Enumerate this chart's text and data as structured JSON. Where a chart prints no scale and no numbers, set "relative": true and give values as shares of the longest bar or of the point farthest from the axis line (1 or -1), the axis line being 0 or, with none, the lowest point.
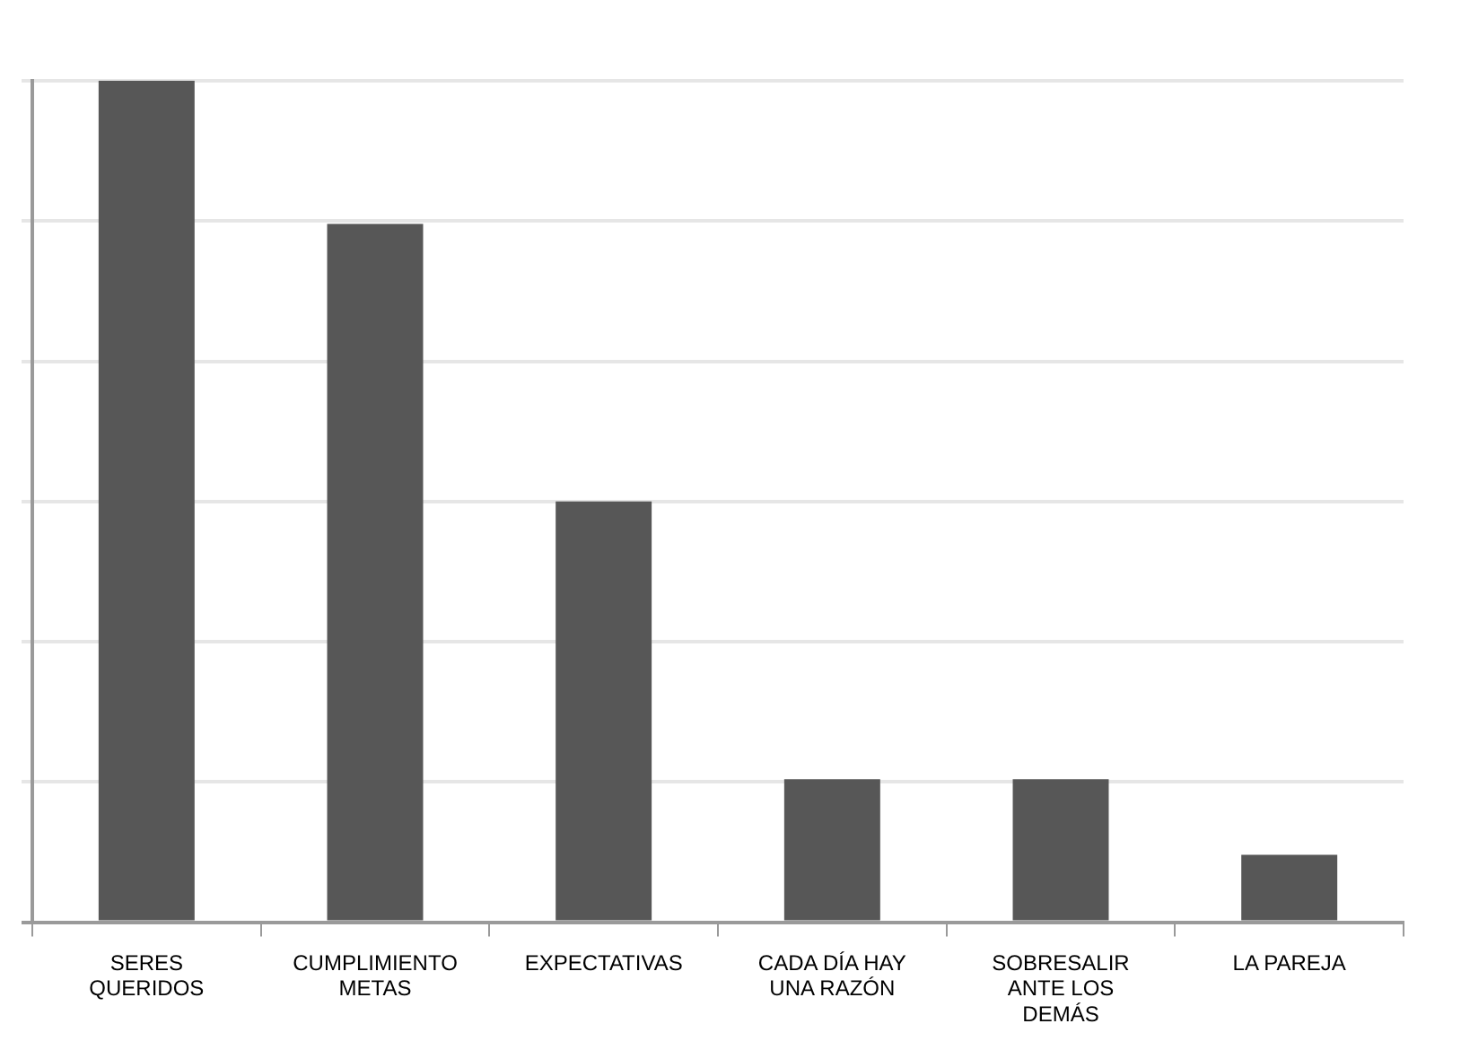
{
  "chart_data": {
    "type": "bar",
    "relative": true,
    "categories": [
      "SERES QUERIDOS",
      "CUMPLIMIENTO METAS",
      "EXPECTATIVAS",
      "CADA DÍA HAY UNA RAZÓN",
      "SOBRESALIR ANTE LOS DEMÁS",
      "LA PAREJA"
    ],
    "values": [
      1,
      0.83,
      0.5,
      0.17,
      0.17,
      0.08
    ],
    "color": "#575757",
    "grid": "y",
    "legend": false
  }
}
